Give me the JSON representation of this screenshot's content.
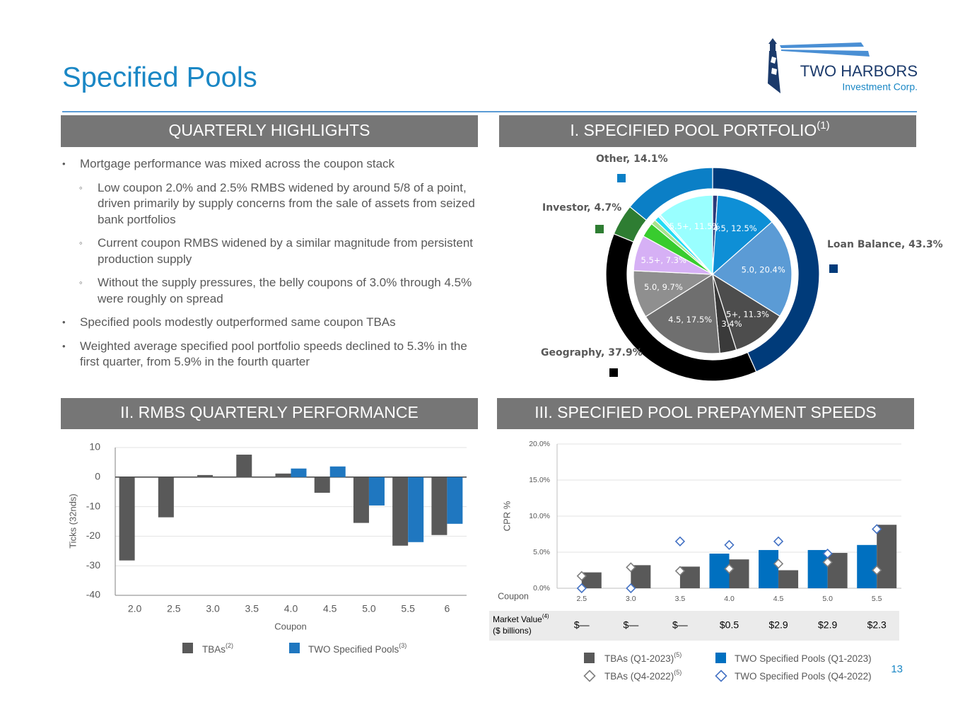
{
  "header": {
    "title": "Specified Pools",
    "logo_name": "TWO HARBORS",
    "logo_sub": "Investment Corp."
  },
  "highlights": {
    "heading": "QUARTERLY HIGHLIGHTS",
    "bullets": [
      {
        "text": "Mortgage performance was mixed across the coupon stack",
        "sub": [
          "Low coupon 2.0% and 2.5% RMBS widened by around 5/8 of a point, driven primarily by supply concerns from the sale of assets from seized bank portfolios",
          "Current coupon RMBS widened by a similar magnitude from persistent production supply",
          "Without the supply pressures, the belly coupons of 3.0% through 4.5% were roughly on spread"
        ]
      },
      {
        "text": "Specified pools modestly outperformed same coupon TBAs"
      },
      {
        "text": "Weighted average specified pool portfolio speeds declined to 5.3% in the first quarter, from 5.9% in the fourth quarter"
      }
    ]
  },
  "chart_data": [
    {
      "type": "pie",
      "title": "I. SPECIFIED POOL PORTFOLIO",
      "title_note": "(1)",
      "series": [
        {
          "values": [
            43.3,
            37.9,
            4.7,
            14.1
          ],
          "value_labels": [
            "Loan Balance, 43.3%",
            "Geography, 37.9%",
            "Investor, 4.7%",
            "Other, 14.1%"
          ],
          "colors": [
            "#003b7a",
            "#000000",
            "#2e7d32",
            "#0b7fc6"
          ]
        },
        {
          "values": [
            1.0,
            12.5,
            20.4,
            11.3,
            3.4,
            17.5,
            9.7,
            7.3,
            3.0,
            1.0,
            1.0,
            0.5,
            11.5
          ],
          "value_labels": [
            null,
            "4.5, 12.5%",
            "5.0, 20.4%",
            "5.5+, 11.3%",
            "4.0, 3.4%",
            "4.5, 17.5%",
            "5.0, 9.7%",
            "5.5+, 7.3%",
            null,
            null,
            null,
            null,
            "5.5+, 11.5%"
          ],
          "colors": [
            "#2b3a7a",
            "#0e8fd6",
            "#5b9bd5",
            "#4d4d4d",
            "#3a3a3a",
            "#6f6f6f",
            "#8f8f8f",
            "#d6b0f5",
            "#38cc2e",
            "#a8e38c",
            "#22dcf5",
            "#c9fbff",
            "#99ffff"
          ]
        }
      ]
    },
    {
      "type": "bar",
      "title": "II. RMBS QUARTERLY PERFORMANCE",
      "categories": [
        "2.0",
        "2.5",
        "3.0",
        "3.5",
        "4.0",
        "4.5",
        "5.0",
        "5.5",
        "6"
      ],
      "x_label": "Coupon",
      "y_label": "Ticks (32nds)",
      "ylim": [
        -40,
        10
      ],
      "yticks": [
        -40,
        -30,
        -20,
        -10,
        0,
        10
      ],
      "grid": true,
      "series": [
        {
          "name": "TBAs",
          "note": "(2)",
          "color": "#595959",
          "mark": "bar",
          "values": [
            -28.2,
            -13.6,
            0.7,
            7.6,
            1.2,
            -5.3,
            -15.5,
            -23.2,
            -19.6
          ]
        },
        {
          "name": "TWO Specified Pools",
          "note": "(3)",
          "color": "#1f77c0",
          "mark": "bar",
          "values": [
            null,
            null,
            null,
            null,
            2.9,
            3.6,
            -9.6,
            -22.0,
            -15.8
          ]
        }
      ]
    },
    {
      "type": "bar",
      "title": "III. SPECIFIED POOL PREPAYMENT SPEEDS",
      "categories": [
        "2.5",
        "3.0",
        "3.5",
        "4.0",
        "4.5",
        "5.0",
        "5.5"
      ],
      "x_label": "Coupon",
      "y_label": "CPR %",
      "ylim": [
        0,
        20
      ],
      "yticks": [
        {
          "value": 0,
          "label": "0.0%"
        },
        {
          "value": 5,
          "label": "5.0%"
        },
        {
          "value": 10,
          "label": "10.0%"
        },
        {
          "value": 15,
          "label": "15.0%"
        },
        {
          "value": 20,
          "label": "20.0%"
        }
      ],
      "grid": true,
      "series": [
        {
          "name": "TWO Specified Pools (Q1-2023)",
          "color": "#0070c0",
          "mark": "bar",
          "values": [
            null,
            null,
            null,
            4.8,
            5.3,
            5.3,
            6.0
          ]
        },
        {
          "name": "TBAs (Q1-2023)",
          "note": "(5)",
          "color": "#595959",
          "mark": "bar",
          "values": [
            2.2,
            3.2,
            3.0,
            4.0,
            2.5,
            4.9,
            8.8
          ]
        },
        {
          "name": "TBAs (Q4-2022)",
          "note": "(5)",
          "color": "#7f7f7f",
          "mark": "diamond",
          "values": [
            1.7,
            2.9,
            2.4,
            2.7,
            3.4,
            3.6,
            2.5
          ]
        },
        {
          "name": "TWO Specified Pools (Q4-2022)",
          "color": "#4472c4",
          "mark": "diamond",
          "values": [
            0.0,
            0.0,
            6.5,
            6.0,
            6.5,
            4.8,
            8.2
          ]
        }
      ],
      "market_value": {
        "label": "Market Value",
        "note": "(4)",
        "unit": "($ billions)",
        "cells": [
          "$—",
          "$—",
          "$—",
          "$0.5",
          "$2.9",
          "$2.9",
          "$2.3"
        ]
      }
    }
  ],
  "page_number": "13"
}
